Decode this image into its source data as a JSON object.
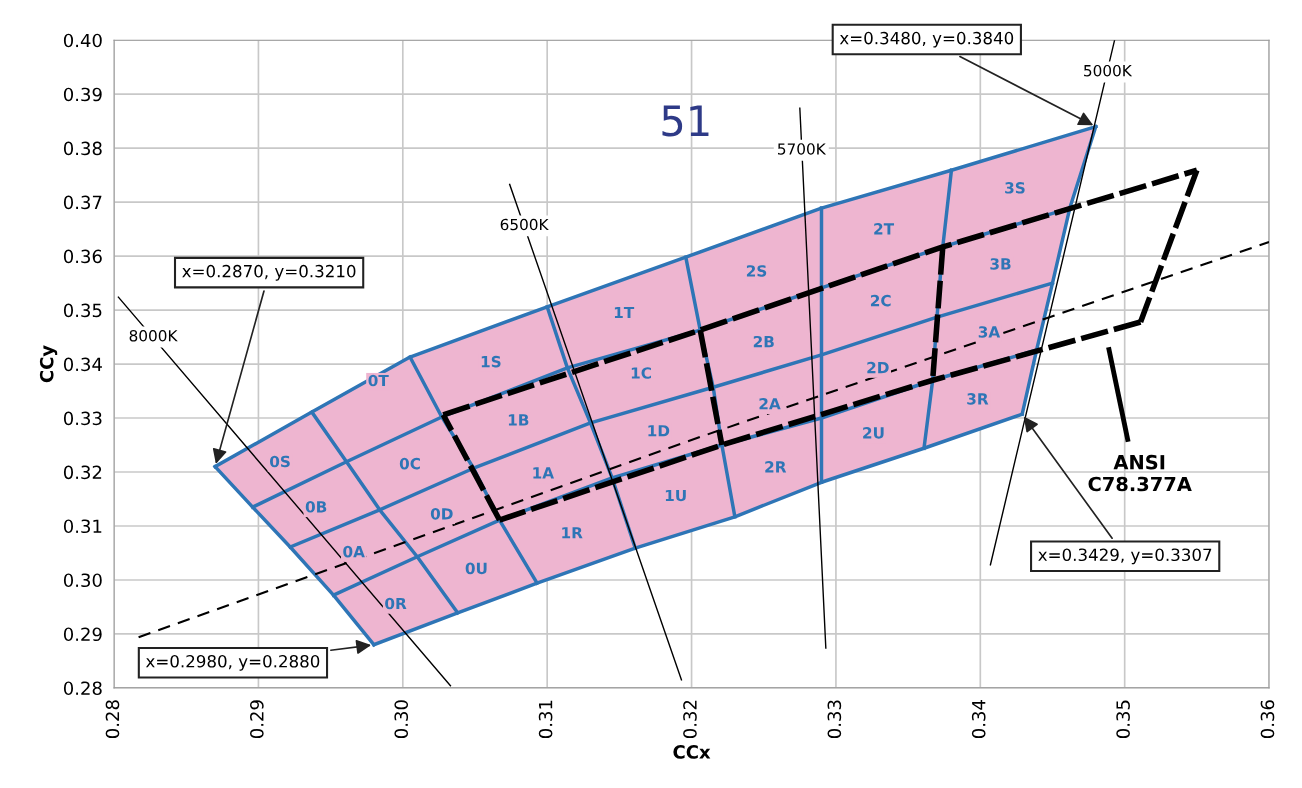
{
  "chart_data": {
    "type": "line",
    "xlabel": "CCx",
    "ylabel": "CCy",
    "grid": true,
    "xlim": [
      0.28,
      0.36
    ],
    "ylim": [
      0.28,
      0.4
    ],
    "xticks": [
      {
        "value": 0.28,
        "label": "0.28"
      },
      {
        "value": 0.29,
        "label": "0.29"
      },
      {
        "value": 0.3,
        "label": "0.30"
      },
      {
        "value": 0.31,
        "label": "0.31"
      },
      {
        "value": 0.32,
        "label": "0.32"
      },
      {
        "value": 0.33,
        "label": "0.33"
      },
      {
        "value": 0.34,
        "label": "0.34"
      },
      {
        "value": 0.35,
        "label": "0.35"
      },
      {
        "value": 0.36,
        "label": "0.36"
      }
    ],
    "yticks": [
      {
        "value": 0.28,
        "label": "0.28"
      },
      {
        "value": 0.29,
        "label": "0.29"
      },
      {
        "value": 0.3,
        "label": "0.30"
      },
      {
        "value": 0.31,
        "label": "0.31"
      },
      {
        "value": 0.32,
        "label": "0.32"
      },
      {
        "value": 0.33,
        "label": "0.33"
      },
      {
        "value": 0.34,
        "label": "0.34"
      },
      {
        "value": 0.35,
        "label": "0.35"
      },
      {
        "value": 0.36,
        "label": "0.36"
      },
      {
        "value": 0.37,
        "label": "0.37"
      },
      {
        "value": 0.38,
        "label": "0.38"
      },
      {
        "value": 0.39,
        "label": "0.39"
      },
      {
        "value": 0.4,
        "label": "0.40"
      }
    ],
    "series": [
      {
        "type": "area",
        "color": "#eeb5d0",
        "x": [
          0.287,
          0.2937,
          0.3005,
          0.31,
          0.3196,
          0.329,
          0.338,
          0.348,
          0.3462,
          0.345,
          0.3439,
          0.3429,
          0.3361,
          0.329,
          0.323,
          0.3161,
          0.3093,
          0.3038,
          0.298,
          0.2952,
          0.2922,
          0.2896,
          0.287
        ],
        "values": [
          0.321,
          0.3311,
          0.3413,
          0.3506,
          0.3598,
          0.3689,
          0.3759,
          0.384,
          0.3689,
          0.355,
          0.3426,
          0.3307,
          0.3244,
          0.3181,
          0.3117,
          0.3059,
          0.2994,
          0.2939,
          0.288,
          0.2972,
          0.3061,
          0.3135,
          0.321
        ]
      },
      {
        "color": "#2e75b6",
        "x": [
          0.287,
          0.2896,
          0.2922,
          0.2952,
          0.298
        ],
        "values": [
          0.321,
          0.3135,
          0.3061,
          0.2972,
          0.288
        ]
      },
      {
        "color": "#2e75b6",
        "x": [
          0.2937,
          0.2961,
          0.2984,
          0.301,
          0.3038
        ],
        "values": [
          0.3311,
          0.3219,
          0.313,
          0.3043,
          0.2939
        ]
      },
      {
        "color": "#2e75b6",
        "x": [
          0.3005,
          0.3027,
          0.3049,
          0.3067,
          0.3093
        ],
        "values": [
          0.3413,
          0.3302,
          0.3207,
          0.3111,
          0.2994
        ]
      },
      {
        "color": "#2e75b6",
        "x": [
          0.31,
          0.3114,
          0.313,
          0.3145,
          0.3161
        ],
        "values": [
          0.3506,
          0.3393,
          0.3291,
          0.3189,
          0.3059
        ]
      },
      {
        "color": "#2e75b6",
        "x": [
          0.3196,
          0.3206,
          0.3215,
          0.3221,
          0.323
        ],
        "values": [
          0.3598,
          0.3463,
          0.3357,
          0.325,
          0.3117
        ]
      },
      {
        "color": "#2e75b6",
        "x": [
          0.329,
          0.329,
          0.329,
          0.329,
          0.329
        ],
        "values": [
          0.3689,
          0.3541,
          0.3417,
          0.33,
          0.3181
        ]
      },
      {
        "color": "#2e75b6",
        "x": [
          0.338,
          0.3374,
          0.337,
          0.3367,
          0.3361
        ],
        "values": [
          0.3759,
          0.3617,
          0.3487,
          0.337,
          0.3244
        ]
      },
      {
        "color": "#2e75b6",
        "x": [
          0.348,
          0.3462,
          0.345,
          0.3439,
          0.3429
        ],
        "values": [
          0.384,
          0.3689,
          0.355,
          0.3426,
          0.3307
        ]
      },
      {
        "color": "#2e75b6",
        "x": [
          0.287,
          0.2937,
          0.3005,
          0.31,
          0.3196,
          0.329,
          0.338,
          0.348
        ],
        "values": [
          0.321,
          0.3311,
          0.3413,
          0.3506,
          0.3598,
          0.3689,
          0.3759,
          0.384
        ]
      },
      {
        "color": "#2e75b6",
        "x": [
          0.2896,
          0.2961,
          0.3027,
          0.3114,
          0.3206,
          0.329,
          0.3374,
          0.3462
        ],
        "values": [
          0.3135,
          0.3219,
          0.3302,
          0.3393,
          0.3463,
          0.3541,
          0.3617,
          0.3689
        ]
      },
      {
        "color": "#2e75b6",
        "x": [
          0.2922,
          0.2984,
          0.3049,
          0.313,
          0.3215,
          0.329,
          0.337,
          0.345
        ],
        "values": [
          0.3061,
          0.313,
          0.3207,
          0.3291,
          0.3357,
          0.3417,
          0.3487,
          0.355
        ]
      },
      {
        "color": "#2e75b6",
        "x": [
          0.2952,
          0.301,
          0.3067,
          0.3145,
          0.3221,
          0.329,
          0.3367,
          0.3439
        ],
        "values": [
          0.2972,
          0.3043,
          0.3111,
          0.3189,
          0.325,
          0.33,
          0.337,
          0.3426
        ]
      },
      {
        "color": "#2e75b6",
        "x": [
          0.298,
          0.3038,
          0.3093,
          0.3161,
          0.323,
          0.329,
          0.3361,
          0.3429
        ],
        "values": [
          0.288,
          0.2939,
          0.2994,
          0.3059,
          0.3117,
          0.3181,
          0.3244,
          0.3307
        ]
      },
      {
        "color": "#000000",
        "x": [
          0.2803,
          0.3033
        ],
        "values": [
          0.3524,
          0.2804
        ]
      },
      {
        "color": "#000000",
        "x": [
          0.3074,
          0.3193
        ],
        "values": [
          0.3733,
          0.2815
        ]
      },
      {
        "color": "#000000",
        "x": [
          0.3275,
          0.3293
        ],
        "values": [
          0.3874,
          0.2874
        ]
      },
      {
        "color": "#000000",
        "x": [
          0.3493,
          0.3407
        ],
        "values": [
          0.4,
          0.3028
        ]
      },
      {
        "color": "#000000",
        "line_style": "dashed",
        "x": [
          0.2817,
          0.3206,
          0.36
        ],
        "values": [
          0.2894,
          0.3265,
          0.3626
        ]
      },
      {
        "color": "#000000",
        "line_style": "dashed",
        "x": [
          0.3028,
          0.3206,
          0.3374,
          0.355
        ],
        "values": [
          0.3306,
          0.3463,
          0.3617,
          0.3759
        ]
      },
      {
        "color": "#000000",
        "line_style": "dashed",
        "x": [
          0.3511,
          0.3367,
          0.3221,
          0.3067
        ],
        "values": [
          0.3478,
          0.337,
          0.325,
          0.3111
        ]
      },
      {
        "color": "#000000",
        "line_style": "dashed",
        "x": [
          0.3067,
          0.3028,
          null,
          0.355,
          0.3511,
          null,
          0.3206,
          0.3221,
          null,
          0.3374,
          0.3367
        ],
        "values": [
          0.3111,
          0.3306,
          null,
          0.3759,
          0.3478,
          null,
          0.3463,
          0.325,
          null,
          0.3617,
          0.337
        ]
      }
    ],
    "annotations": [
      {
        "text": "0S",
        "x": 0.2915,
        "y": 0.3217
      },
      {
        "text": "0T",
        "x": 0.2983,
        "y": 0.3367
      },
      {
        "text": "0B",
        "x": 0.294,
        "y": 0.3133
      },
      {
        "text": "0C",
        "x": 0.3005,
        "y": 0.3213
      },
      {
        "text": "0A",
        "x": 0.2966,
        "y": 0.305
      },
      {
        "text": "0D",
        "x": 0.3027,
        "y": 0.312
      },
      {
        "text": "0R",
        "x": 0.2995,
        "y": 0.2954
      },
      {
        "text": "0U",
        "x": 0.3051,
        "y": 0.3019
      },
      {
        "text": "1S",
        "x": 0.3061,
        "y": 0.3402
      },
      {
        "text": "1B",
        "x": 0.308,
        "y": 0.3294
      },
      {
        "text": "1A",
        "x": 0.3097,
        "y": 0.3196
      },
      {
        "text": "1R",
        "x": 0.3117,
        "y": 0.3085
      },
      {
        "text": "1T",
        "x": 0.3153,
        "y": 0.3493
      },
      {
        "text": "1C",
        "x": 0.3165,
        "y": 0.3381
      },
      {
        "text": "1D",
        "x": 0.3177,
        "y": 0.3274
      },
      {
        "text": "1U",
        "x": 0.3189,
        "y": 0.3154
      },
      {
        "text": "2S",
        "x": 0.3245,
        "y": 0.357
      },
      {
        "text": "2B",
        "x": 0.325,
        "y": 0.3439
      },
      {
        "text": "2A",
        "x": 0.3254,
        "y": 0.3324
      },
      {
        "text": "2R",
        "x": 0.3258,
        "y": 0.3207
      },
      {
        "text": "2T",
        "x": 0.3333,
        "y": 0.3648
      },
      {
        "text": "2C",
        "x": 0.3331,
        "y": 0.3515
      },
      {
        "text": "2D",
        "x": 0.3329,
        "y": 0.3391
      },
      {
        "text": "2U",
        "x": 0.3326,
        "y": 0.327
      },
      {
        "text": "3S",
        "x": 0.3424,
        "y": 0.3724
      },
      {
        "text": "3B",
        "x": 0.3414,
        "y": 0.3583
      },
      {
        "text": "3A",
        "x": 0.3406,
        "y": 0.3457
      },
      {
        "text": "3R",
        "x": 0.3398,
        "y": 0.3333
      },
      {
        "text": "8000K",
        "x": 0.2827,
        "y": 0.345
      },
      {
        "text": "6500K",
        "x": 0.3084,
        "y": 0.3656
      },
      {
        "text": "5700K",
        "x": 0.3276,
        "y": 0.3796
      },
      {
        "text": "5000K",
        "x": 0.3488,
        "y": 0.3941
      },
      {
        "text": "x=0.2870, y=0.3210",
        "x": 0.287,
        "y": 0.321
      },
      {
        "text": "x=0.3480, y=0.3840",
        "x": 0.348,
        "y": 0.384
      },
      {
        "text": "x=0.3429, y=0.3307",
        "x": 0.3429,
        "y": 0.3307
      },
      {
        "text": "x=0.2980, y=0.2880",
        "x": 0.298,
        "y": 0.288
      },
      "ANSI\nC78.377A",
      "51"
    ]
  }
}
